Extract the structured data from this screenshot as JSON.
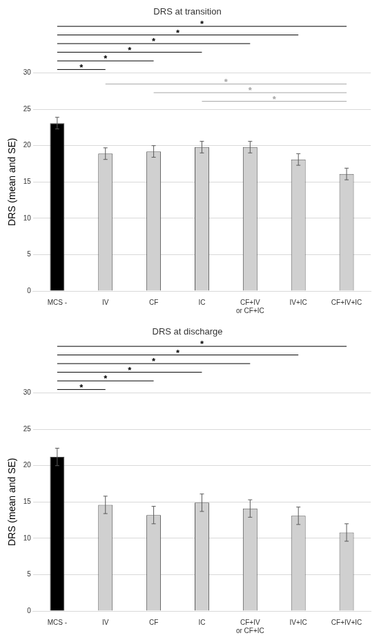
{
  "chart_data": [
    {
      "type": "bar",
      "title": "DRS at transition",
      "y_label": "DRS (mean and SE)",
      "categories": [
        "MCS -",
        "IV",
        "CF",
        "IC",
        "CF+IV or CF+IC",
        "IV+IC",
        "CF+IV+IC"
      ],
      "values": [
        23.1,
        18.9,
        19.2,
        19.8,
        19.8,
        18.1,
        16.1
      ],
      "errors": [
        0.8,
        0.8,
        0.8,
        0.8,
        0.8,
        0.8,
        0.8
      ],
      "colors": [
        "#000000",
        "#d0d0d0",
        "#d0d0d0",
        "#d0d0d0",
        "#d0d0d0",
        "#d0d0d0",
        "#d0d0d0"
      ],
      "ylim": [
        0,
        30
      ],
      "yticks": [
        0,
        5,
        10,
        15,
        20,
        25,
        30
      ],
      "grid": true,
      "brackets": [
        {
          "from": "MCS -",
          "to": "IV",
          "label": "*",
          "color": "#000000"
        },
        {
          "from": "MCS -",
          "to": "CF",
          "label": "*",
          "color": "#000000"
        },
        {
          "from": "MCS -",
          "to": "IC",
          "label": "*",
          "color": "#000000"
        },
        {
          "from": "MCS -",
          "to": "CF+IV or CF+IC",
          "label": "*",
          "color": "#000000"
        },
        {
          "from": "MCS -",
          "to": "IV+IC",
          "label": "*",
          "color": "#000000"
        },
        {
          "from": "MCS -",
          "to": "CF+IV+IC",
          "label": "*",
          "color": "#000000"
        },
        {
          "from": "IV",
          "to": "CF+IV+IC",
          "label": "*",
          "color": "#a6a6a6"
        },
        {
          "from": "CF",
          "to": "CF+IV+IC",
          "label": "*",
          "color": "#a6a6a6"
        },
        {
          "from": "IC",
          "to": "CF+IV+IC",
          "label": "*",
          "color": "#a6a6a6"
        }
      ]
    },
    {
      "type": "bar",
      "title": "DRS at discharge",
      "y_label": "DRS (mean and SE)",
      "categories": [
        "MCS -",
        "IV",
        "CF",
        "IC",
        "CF+IV or CF+IC",
        "IV+IC",
        "CF+IV+IC"
      ],
      "values": [
        21.2,
        14.6,
        13.2,
        14.9,
        14.1,
        13.1,
        10.8
      ],
      "errors": [
        1.2,
        1.2,
        1.2,
        1.2,
        1.2,
        1.2,
        1.2
      ],
      "colors": [
        "#000000",
        "#d0d0d0",
        "#d0d0d0",
        "#d0d0d0",
        "#d0d0d0",
        "#d0d0d0",
        "#d0d0d0"
      ],
      "ylim": [
        0,
        30
      ],
      "yticks": [
        0,
        5,
        10,
        15,
        20,
        25,
        30
      ],
      "grid": true,
      "brackets": [
        {
          "from": "MCS -",
          "to": "IV",
          "label": "*",
          "color": "#000000"
        },
        {
          "from": "MCS -",
          "to": "CF",
          "label": "*",
          "color": "#000000"
        },
        {
          "from": "MCS -",
          "to": "IC",
          "label": "*",
          "color": "#000000"
        },
        {
          "from": "MCS -",
          "to": "CF+IV or CF+IC",
          "label": "*",
          "color": "#000000"
        },
        {
          "from": "MCS -",
          "to": "IV+IC",
          "label": "*",
          "color": "#000000"
        },
        {
          "from": "MCS -",
          "to": "CF+IV+IC",
          "label": "*",
          "color": "#000000"
        }
      ]
    }
  ]
}
